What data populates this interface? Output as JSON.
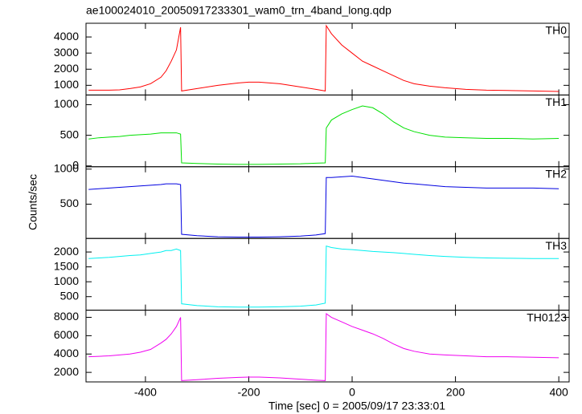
{
  "chart_data": [
    {
      "type": "line",
      "title": "ae100024010_20050917233301_wam0_trn_4band_long.qdp",
      "x": [
        -510,
        -490,
        -470,
        -450,
        -430,
        -410,
        -390,
        -370,
        -360,
        -350,
        -340,
        -332,
        -330,
        -300,
        -260,
        -220,
        -200,
        -180,
        -140,
        -100,
        -70,
        -52,
        -50,
        -40,
        -20,
        0,
        20,
        40,
        60,
        80,
        100,
        120,
        150,
        180,
        220,
        260,
        300,
        350,
        400
      ],
      "series": [
        {
          "name": "TH0",
          "color": "#ff0000",
          "values": [
            700,
            700,
            700,
            720,
            800,
            900,
            1100,
            1500,
            1900,
            2500,
            3200,
            4600,
            650,
            800,
            1000,
            1150,
            1200,
            1200,
            1100,
            900,
            750,
            650,
            4700,
            4200,
            3500,
            3000,
            2500,
            2200,
            1900,
            1600,
            1300,
            1100,
            950,
            850,
            750,
            700,
            680,
            650,
            620
          ]
        }
      ],
      "xlim": [
        -515,
        420
      ],
      "xticks": [
        -400,
        -200,
        0,
        200,
        400
      ],
      "ylim": [
        400,
        4850
      ],
      "yticks": [
        1000,
        2000,
        3000,
        4000
      ]
    },
    {
      "type": "line",
      "x": [
        -510,
        -490,
        -470,
        -450,
        -430,
        -410,
        -390,
        -370,
        -360,
        -350,
        -340,
        -332,
        -330,
        -300,
        -260,
        -220,
        -200,
        -180,
        -140,
        -100,
        -70,
        -52,
        -50,
        -40,
        -20,
        0,
        20,
        40,
        60,
        80,
        100,
        120,
        150,
        180,
        220,
        260,
        300,
        350,
        400
      ],
      "series": [
        {
          "name": "TH1",
          "color": "#00e000",
          "values": [
            440,
            460,
            470,
            480,
            500,
            510,
            520,
            540,
            540,
            540,
            540,
            520,
            50,
            40,
            30,
            25,
            25,
            25,
            30,
            35,
            45,
            50,
            620,
            750,
            850,
            920,
            980,
            950,
            850,
            720,
            620,
            560,
            500,
            470,
            460,
            450,
            450,
            440,
            450
          ]
        }
      ],
      "xlim": [
        -515,
        420
      ],
      "xticks": [
        -400,
        -200,
        0,
        200,
        400
      ],
      "ylim": [
        -13,
        1158
      ],
      "yticks": [
        0,
        500,
        1000
      ]
    },
    {
      "type": "line",
      "y_label": "Counts/sec",
      "x": [
        -510,
        -490,
        -470,
        -450,
        -430,
        -410,
        -390,
        -370,
        -360,
        -350,
        -340,
        -332,
        -330,
        -300,
        -260,
        -220,
        -200,
        -180,
        -140,
        -100,
        -70,
        -52,
        -50,
        -40,
        -20,
        0,
        20,
        40,
        60,
        80,
        100,
        120,
        150,
        180,
        220,
        260,
        300,
        350,
        400
      ],
      "series": [
        {
          "name": "TH2",
          "color": "#0000e0",
          "values": [
            710,
            720,
            730,
            740,
            750,
            760,
            770,
            780,
            790,
            790,
            790,
            780,
            70,
            50,
            35,
            30,
            30,
            30,
            35,
            45,
            60,
            80,
            880,
            880,
            890,
            900,
            880,
            860,
            840,
            820,
            800,
            790,
            770,
            750,
            740,
            730,
            730,
            730,
            720
          ]
        }
      ],
      "xlim": [
        -515,
        420
      ],
      "xticks": [
        -400,
        -200,
        0,
        200,
        400
      ],
      "ylim": [
        11,
        1034
      ],
      "yticks": [
        500,
        1000
      ]
    },
    {
      "type": "line",
      "x": [
        -510,
        -490,
        -470,
        -450,
        -430,
        -410,
        -390,
        -370,
        -360,
        -350,
        -340,
        -332,
        -330,
        -300,
        -260,
        -220,
        -200,
        -180,
        -140,
        -100,
        -70,
        -52,
        -50,
        -40,
        -20,
        0,
        20,
        40,
        60,
        80,
        100,
        120,
        150,
        180,
        220,
        260,
        300,
        350,
        400
      ],
      "series": [
        {
          "name": "TH3",
          "color": "#00f0f0",
          "values": [
            1780,
            1800,
            1820,
            1850,
            1880,
            1900,
            1950,
            2000,
            2050,
            2050,
            2100,
            2050,
            260,
            200,
            160,
            150,
            150,
            150,
            160,
            180,
            220,
            280,
            2200,
            2150,
            2100,
            2080,
            2050,
            2020,
            2000,
            1980,
            1950,
            1920,
            1880,
            1850,
            1820,
            1800,
            1790,
            1780,
            1780
          ]
        }
      ],
      "xlim": [
        -515,
        420
      ],
      "xticks": [
        -400,
        -200,
        0,
        200,
        400
      ],
      "ylim": [
        45,
        2455
      ],
      "yticks": [
        500,
        1000,
        1500,
        2000
      ]
    },
    {
      "type": "line",
      "x_label": "Time [sec] 0 = 2005/09/17 23:33:01",
      "show_xtick_labels": true,
      "x": [
        -510,
        -490,
        -470,
        -450,
        -430,
        -410,
        -390,
        -370,
        -360,
        -350,
        -340,
        -332,
        -330,
        -300,
        -260,
        -220,
        -200,
        -180,
        -140,
        -100,
        -70,
        -52,
        -50,
        -40,
        -20,
        0,
        20,
        40,
        60,
        80,
        100,
        120,
        150,
        180,
        220,
        260,
        300,
        350,
        400
      ],
      "series": [
        {
          "name": "TH0123",
          "color": "#f000f0",
          "values": [
            3700,
            3750,
            3800,
            3900,
            4000,
            4200,
            4500,
            5200,
            5600,
            6200,
            7000,
            8000,
            1100,
            1200,
            1350,
            1450,
            1480,
            1480,
            1400,
            1250,
            1150,
            1100,
            8400,
            8000,
            7500,
            7000,
            6600,
            6200,
            5700,
            5100,
            4600,
            4300,
            4000,
            3900,
            3800,
            3700,
            3700,
            3650,
            3600
          ]
        }
      ],
      "xlim": [
        -515,
        420
      ],
      "xticks": [
        -400,
        -200,
        0,
        200,
        400
      ],
      "ylim": [
        960,
        8780
      ],
      "yticks": [
        2000,
        4000,
        6000,
        8000
      ]
    }
  ]
}
